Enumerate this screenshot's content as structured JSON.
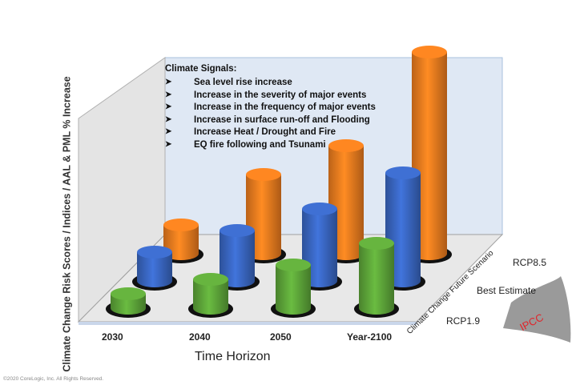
{
  "chart_data": {
    "type": "bar",
    "subtype": "3d-cylinder",
    "categories": [
      "2030",
      "2040",
      "2050",
      "Year-2100"
    ],
    "xlabel": "Time Horizon",
    "ylabel": "Climate Change Risk Scores / Indices / AAL & PML % Increase",
    "depth_label": "Climate Change Future Scenario",
    "series": [
      {
        "name": "RCP1.9",
        "color": "#5fa83a",
        "values": [
          1,
          2,
          3,
          4.5
        ]
      },
      {
        "name": "Best Estimate",
        "color": "#3a68c4",
        "values": [
          2,
          3.5,
          5,
          7.5
        ]
      },
      {
        "name": "RCP8.5",
        "color": "#f07d1f",
        "values": [
          2,
          5.5,
          7.5,
          14
        ]
      }
    ],
    "grid": false,
    "legend": "none"
  },
  "signals": {
    "title": "Climate Signals:",
    "items": [
      "Sea level rise increase",
      "Increase in the severity of major events",
      "Increase in the frequency of major events",
      "Increase in surface run-off and Flooding",
      "Increase Heat / Drought and Fire",
      "EQ fire following and Tsunami"
    ]
  },
  "badge": "IPCC",
  "copyright": "©2020 CoreLogic, Inc. All Rights Reserved."
}
